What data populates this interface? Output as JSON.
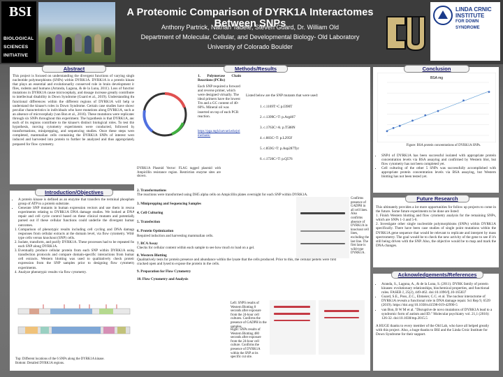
{
  "header": {
    "title": "A Proteomic Comparison of DYRK1A Interactomes Between SNPs",
    "authors": "Anthony Partrick, Nathan Tadele, Steven Guard, Dr. William Old",
    "department": "Department of Molecular, Cellular, and Developmental Biology- Old Laboratory",
    "university": "University of Colorado Boulder",
    "bsi_mark": "BSI",
    "bsi_lines": [
      "BIOLOGICAL",
      "SCIENCES",
      "INITIATIVE"
    ],
    "crnic_lines": [
      "LINDA CRNIC",
      "INSTITUTE",
      "FOR DOWN SYNDROME"
    ]
  },
  "abstract": {
    "heading": "Abstract",
    "text": "This project is focused on understanding the divergent functions of varying single nucleotide polymorphisms (SNPs) within DYRK1A. DYRK1A is a protein kinase that plays an essential and evolutionarily conserved role in brain development in flies, rodents and humans (Arranda, Laguna, & de la Luna, 2011). Loss of function mutations in DYRK1A cause microcephaly, and dosage increase greatly contributes to intellectual disability in Down Syndrome (Guard et al., 2019). Understanding the functional differences within the different regions of DYRK1A will help us understand the kinase's roles in Down Syndrome. Certain case studies have shown peculiar characteristics in individuals who have mutations along DYRK1A, such as an absence of microcephaly (van Bon et al., 2016). These mutations were replicated through six SNPs throughout this experiment. The hypothesis is that DYRK1A, and each of its regions contribute to the kinase's distinct biological roles. To test this hypothesis, moving cytometry experiments were conducted, followed by transformations, miniprepping, and sequencing studies. Once these steps were completed, mammalian cells containing the DYRK1A SNPs of interest were induced and harvested into protein to further be analyzed and thus appropriately prepared for flow cytometry."
  },
  "intro": {
    "heading": "Introduction/Objectives",
    "bullets": [
      "A protein kinase is defined as an enzyme that transfers the terminal phosphate group of ATP to a protein substrate.",
      "Generate SNP mutants in human expression vectors and use them in rescue experiments relating to DYRK1A DNA damage studies. We looked at DNA repair and cell cycle control based on these clinical mutants and potentially parsed out if these cellular functions could underlie the divergent human outcomes.",
      "Comparison of phenotypic results including cell cycling and DNA damage responses from cellular extracts at the domain level, via flow cytometry. Wild-type cells versus knockout (SNP) cells.",
      "Isolate, transform, and purify DYRK1A. These processes had to be repeated for each SNP along DYRK1A.",
      "Eventually produce cellular protein from each SNP within DYRK1A using transfection protocols and compare domain-specific interactions from human cell extracts. Western blotting was used to qualitatively check protein expression from the SNP samples prior to designing flow cytometry experiments.",
      "Analyze phenotypic results via flow cytometry."
    ],
    "figure_caption_top": "Top: Different locations of the 6 SNPs along the DYRK1A kinase.",
    "figure_caption_bottom": "Bottom: Detailed DYRK1A regions."
  },
  "methods": {
    "heading": "Methods/Results",
    "step1_title": "1.  Polymerase Chain Reactions (PCRs)",
    "step1_text": "Each SNP required a forward and reverse primer, which were designed virtually. The ideal primers have the lowest Tm and a GC content of 40-60%. Mineral oil was inserted on top of each PCR reaction.",
    "step1_link": "https://pga.mgh.harvard.edu/primerbank/",
    "plasmid_caption": "DYRK1A Plasmid Vector: FLAG tagged plasmid with Ampicillin resistance region. Restriction enzyme sites are shown.",
    "mut_intro": "Listed below are the SNP mutants that were used:",
    "mutants": [
      "1.  c.1169T>C p.I390T",
      "2.  c.1399C>T: p.Arg467",
      "3.  c.1763C>A: p.T588N",
      "4.  c.883C>T: p.L295F",
      "5.  c.859G>T: p.Asp287Tyr",
      "6.  c.1726C>T: p.Q576"
    ],
    "steps": [
      {
        "t": "2. Transformations",
        "d": "The reactions were transformed using DH5 alpha cells on Ampicillin plates overnight for each SNP within DYRK1A."
      },
      {
        "t": "3.  Miniprepping and Sequencing Samples",
        "d": ""
      },
      {
        "t": "4. Cell Culturing",
        "d": ""
      },
      {
        "t": "5. Transfection",
        "d": ""
      },
      {
        "t": "6. Protein Optimization",
        "d": "Required induction and harvesting mammalian cells."
      },
      {
        "t": "7. BCA Assay",
        "d": "Checks for cellular content within each sample to see how much to load on a gel."
      },
      {
        "t": "8. Western Blotting",
        "d": "Qualitatively tests for protein presence and abundance within the lysate that the cells produced. Prior to this, the cellular pellets were first cracked open and lysed to expose the protein in the cells."
      },
      {
        "t": "9. Preparation for Flow Cytometry",
        "d": ""
      },
      {
        "t": "10. Flow Cytometry and Analysis",
        "d": ""
      }
    ],
    "blot_note": "Confirms presence of GADPH in all cell lines. Also confirms absence of DYRK1A in knockout cell lines, excluding the last line. The first lane is wild-type DYRK1A.",
    "left_note": "Left: SNPS results of Western Blotting 8 seconds after exposure from the 24-hour cell cultures. Confirms the presence of GADPH in the samples.",
    "right_note": "Right: SNPs results of Western Blotting 480 seconds after exposure from the 24-hour cell culture. Confirms the presence of DYRK1A within the SNP at its specific cut site."
  },
  "conclusion": {
    "heading": "Conclusion",
    "chart_caption": "Figure: BSA protein concentrations of DYRK1A SNPs.",
    "bullets": [
      "SNP4 of DYRK1A has been successful isolated with appropriate protein concentration levels via BSA assaying and confirmed by Western blot, but flow cytometry has not been completed yet.",
      "Cell culturing of the other 5 SNPs was successfully accomplished with appropriate protein concentration levels via BSA assaying, but Western blotting has not been tested yet."
    ]
  },
  "future": {
    "heading": "Future Research",
    "text": "This ultimately provides a lot more opportunities for follow up projects to come in the future. Some future experiments to be done are listed:",
    "items": [
      "1. Finish Western blotting and flow cytometry analysis for the remaining SNPs, which are SNPs 1-3 and 5-6.",
      "2. Investigate other single nucleotide polymorphisms (SNPs) within DYRK1A specifically. There have been case studies of single point mutations within the DYRK1A gene sequence that would be relevant to replicate and interpret by mass spectrometry. The goal would be to check the new activity of the gene to see if it's still being driven with the SNP. Also, the objective would be to map and mark the DNA changes."
    ]
  },
  "ack": {
    "heading": "Acknowledgements/References",
    "refs": [
      "Aranda, S., Laguna, A., & de la Luna, S. (2011). DYRK family of protein kinases: evolutionary relationships, biochemical properties, and functional roles. FASEB J, 25(2), 449-462. doi:10.1096/fj.10-165837",
      "Guard, S.E., Poss, Z.C., Ebmeier, C.C. et al. The nuclear interactome of DYRK1A reveals a functional role in DNA damage repair. Sci Rep 9, 6539 (2019). https://doi.org/10.1038/s41598-019-42990-5",
      "van Bon, B W M et al. \"Disruptive de novo mutations of DYRK1A lead to a syndromic form of autism and ID.\" Molecular psychiatry vol. 21,1 (2016): 126-32. doi:10.1038/mp.2015.5"
    ],
    "thanks": "A HUGE thanks to every member of the Old Lab, who have all helped greatly with this project. Also, a huge thanks to BSI and the Linda Crnic Institute for Down Syndrome for their support."
  },
  "chart_data": {
    "type": "scatter",
    "title": "BSA mg",
    "x": [
      0,
      0.125,
      0.25,
      0.5,
      0.75,
      1.0,
      1.5,
      2.0
    ],
    "y": [
      0.08,
      0.14,
      0.18,
      0.28,
      0.38,
      0.46,
      0.66,
      0.82
    ],
    "trendline": true,
    "grid": true
  }
}
